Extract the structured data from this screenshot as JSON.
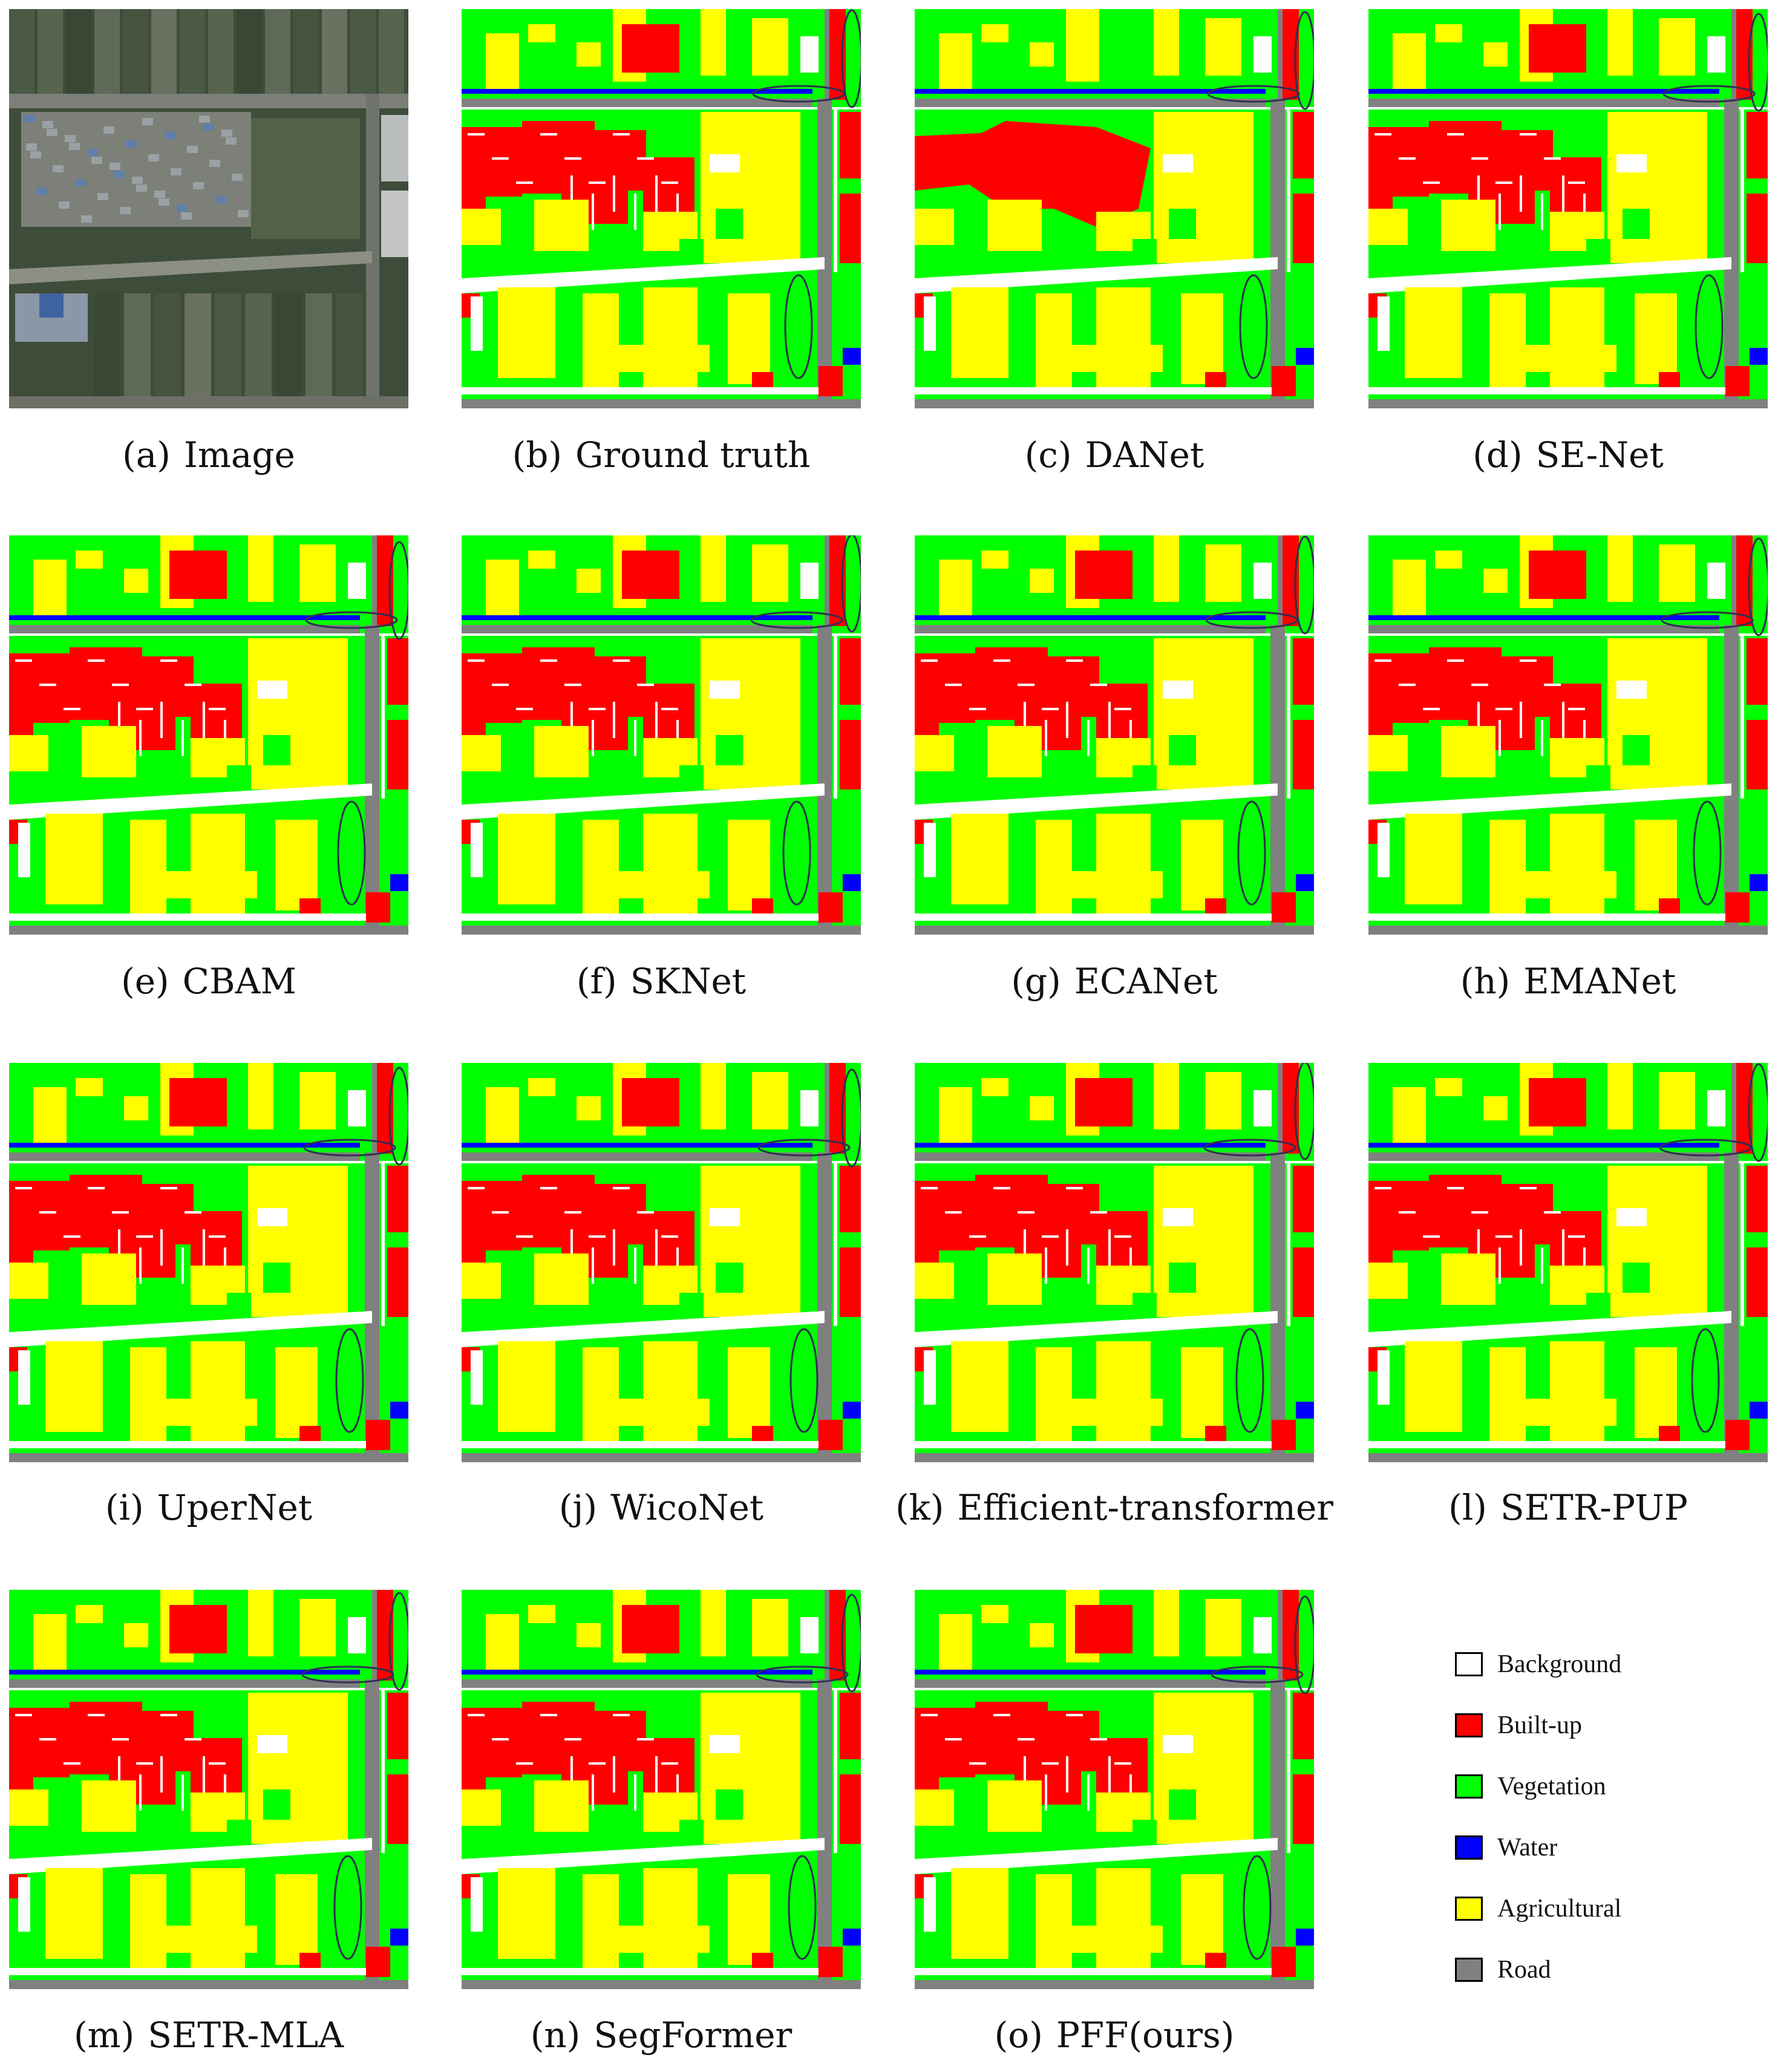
{
  "figure": {
    "panels": [
      {
        "tag": "(a)",
        "label": "Image",
        "kind": "photo"
      },
      {
        "tag": "(b)",
        "label": "Ground truth",
        "kind": "map"
      },
      {
        "tag": "(c)",
        "label": "DANet",
        "kind": "map"
      },
      {
        "tag": "(d)",
        "label": "SE-Net",
        "kind": "map"
      },
      {
        "tag": "(e)",
        "label": "CBAM",
        "kind": "map"
      },
      {
        "tag": "(f)",
        "label": "SKNet",
        "kind": "map"
      },
      {
        "tag": "(g)",
        "label": "ECANet",
        "kind": "map"
      },
      {
        "tag": "(h)",
        "label": "EMANet",
        "kind": "map"
      },
      {
        "tag": "(i)",
        "label": "UperNet",
        "kind": "map"
      },
      {
        "tag": "(j)",
        "label": "WicoNet",
        "kind": "map"
      },
      {
        "tag": "(k)",
        "label": "Efficient-transformer",
        "kind": "map"
      },
      {
        "tag": "(l)",
        "label": "SETR-PUP",
        "kind": "map"
      },
      {
        "tag": "(m)",
        "label": "SETR-MLA",
        "kind": "map"
      },
      {
        "tag": "(n)",
        "label": "SegFormer",
        "kind": "map"
      },
      {
        "tag": "(o)",
        "label": "PFF(ours)",
        "kind": "map"
      }
    ],
    "legend": [
      {
        "label": "Background",
        "color": "#ffffff"
      },
      {
        "label": "Built-up",
        "color": "#ff0000"
      },
      {
        "label": "Vegetation",
        "color": "#00ff00"
      },
      {
        "label": "Water",
        "color": "#0000ff"
      },
      {
        "label": "Agricultural",
        "color": "#ffff00"
      },
      {
        "label": "Road",
        "color": "#808080"
      }
    ]
  }
}
